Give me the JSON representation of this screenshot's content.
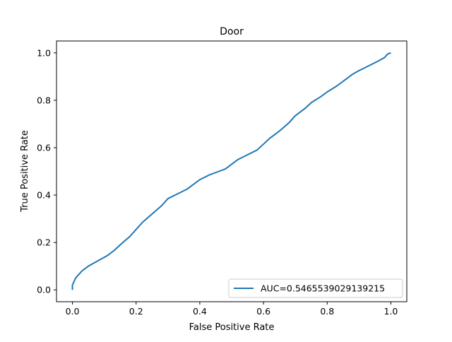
{
  "chart_data": {
    "type": "line",
    "title": "Door",
    "xlabel": "False Positive Rate",
    "ylabel": "True Positive Rate",
    "xlim": [
      -0.05,
      1.05
    ],
    "ylim": [
      -0.05,
      1.05
    ],
    "xticks": [
      0.0,
      0.2,
      0.4,
      0.6,
      0.8,
      1.0
    ],
    "xtick_labels": [
      "0.0",
      "0.2",
      "0.4",
      "0.6",
      "0.8",
      "1.0"
    ],
    "yticks": [
      0.0,
      0.2,
      0.4,
      0.6,
      0.8,
      1.0
    ],
    "ytick_labels": [
      "0.0",
      "0.2",
      "0.4",
      "0.6",
      "0.8",
      "1.0"
    ],
    "grid": false,
    "legend_position": "lower right",
    "series": [
      {
        "name": "AUC=0.5465539029139215",
        "color": "#1f77b4",
        "x": [
          0.0,
          0.0,
          0.005,
          0.01,
          0.02,
          0.03,
          0.05,
          0.07,
          0.09,
          0.11,
          0.13,
          0.15,
          0.18,
          0.2,
          0.22,
          0.25,
          0.28,
          0.3,
          0.33,
          0.36,
          0.38,
          0.4,
          0.43,
          0.46,
          0.48,
          0.5,
          0.52,
          0.55,
          0.58,
          0.6,
          0.62,
          0.65,
          0.68,
          0.7,
          0.73,
          0.75,
          0.78,
          0.8,
          0.83,
          0.86,
          0.88,
          0.9,
          0.93,
          0.96,
          0.98,
          0.99,
          1.0
        ],
        "y": [
          0.0,
          0.02,
          0.035,
          0.05,
          0.065,
          0.08,
          0.1,
          0.115,
          0.13,
          0.145,
          0.165,
          0.19,
          0.225,
          0.255,
          0.285,
          0.32,
          0.355,
          0.385,
          0.405,
          0.425,
          0.445,
          0.465,
          0.485,
          0.5,
          0.51,
          0.53,
          0.55,
          0.57,
          0.59,
          0.615,
          0.64,
          0.67,
          0.705,
          0.735,
          0.765,
          0.79,
          0.815,
          0.835,
          0.86,
          0.89,
          0.91,
          0.925,
          0.945,
          0.965,
          0.98,
          0.995,
          1.0
        ]
      }
    ]
  }
}
